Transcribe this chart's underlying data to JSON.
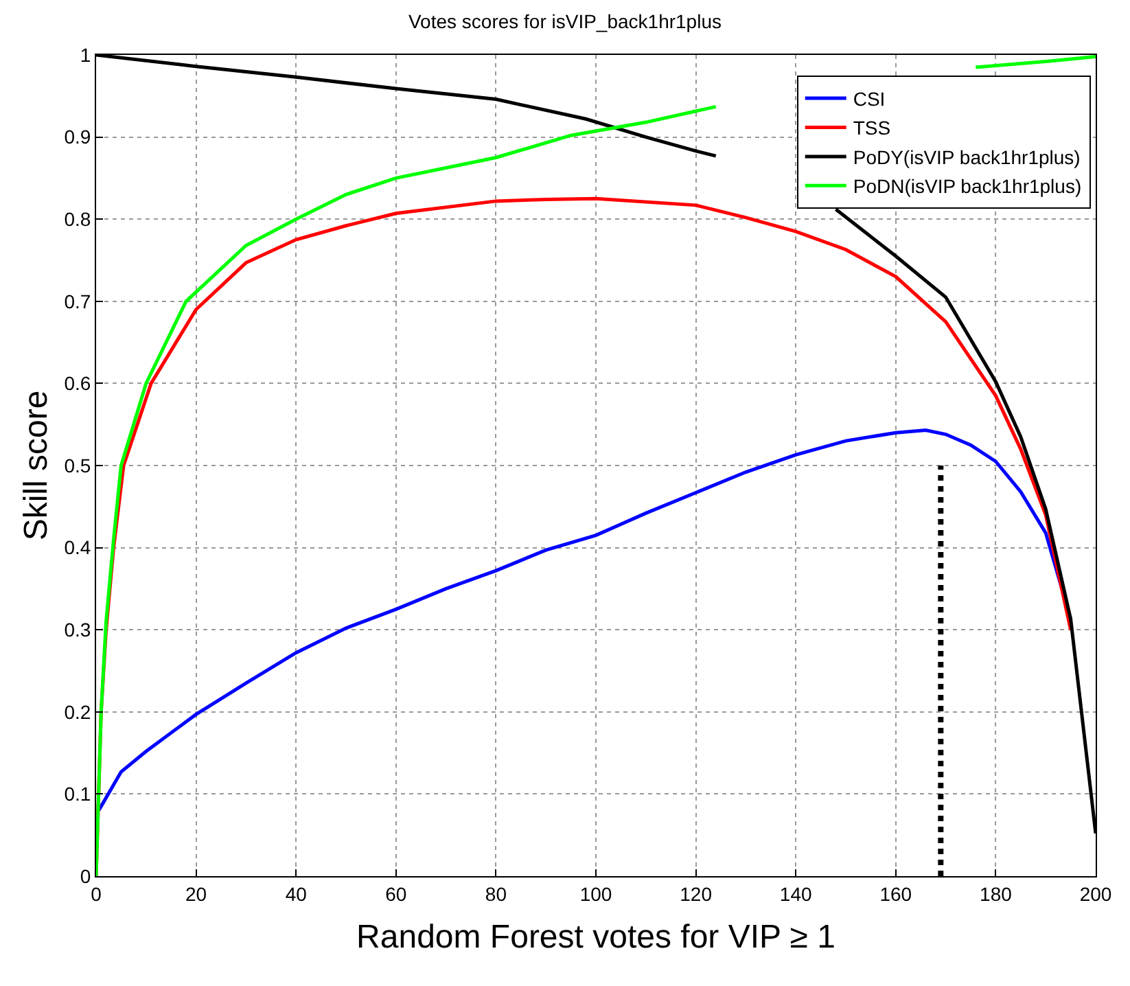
{
  "chart_data": {
    "type": "line",
    "title": "Votes scores for isVIP_back1hr1plus",
    "xlabel": "Random Forest votes for VIP ≥ 1",
    "ylabel": "Skill score",
    "xlim": [
      0,
      200
    ],
    "xticks": [
      0,
      20,
      40,
      60,
      80,
      100,
      120,
      140,
      160,
      180,
      200
    ],
    "ylim": [
      0,
      1
    ],
    "yticks": [
      0,
      0.1,
      0.2,
      0.3,
      0.4,
      0.5,
      0.6,
      0.7,
      0.8,
      0.9,
      1
    ],
    "grid": true,
    "legend": "top right",
    "line_style": "solid",
    "marker": "none",
    "series": [
      {
        "name": "CSI",
        "color": "#0000ff",
        "x": [
          0.5,
          1,
          5,
          10,
          20,
          30,
          40,
          50,
          60,
          70,
          80,
          90,
          100,
          110,
          120,
          130,
          140,
          150,
          160,
          166,
          170,
          175,
          180,
          185,
          190,
          195
        ],
        "values": [
          0.08,
          0.085,
          0.127,
          0.152,
          0.197,
          0.235,
          0.272,
          0.302,
          0.325,
          0.35,
          0.372,
          0.397,
          0.415,
          0.442,
          0.467,
          0.492,
          0.513,
          0.53,
          0.54,
          0.543,
          0.538,
          0.525,
          0.505,
          0.468,
          0.418,
          0.313
        ]
      },
      {
        "name": "TSS",
        "color": "#ff0000",
        "x": [
          0,
          1,
          2,
          3.5,
          5.5,
          11,
          20,
          30,
          40,
          50,
          60,
          80,
          90,
          100,
          120,
          130,
          140,
          150,
          160,
          170,
          180,
          185,
          190,
          195
        ],
        "values": [
          0,
          0.2,
          0.3,
          0.4,
          0.5,
          0.6,
          0.69,
          0.747,
          0.775,
          0.792,
          0.807,
          0.822,
          0.824,
          0.825,
          0.817,
          0.802,
          0.785,
          0.763,
          0.73,
          0.675,
          0.585,
          0.52,
          0.44,
          0.3
        ]
      },
      {
        "name": "PoDY(isVIP back1hr1plus)",
        "color": "#000000",
        "x": [
          0,
          20,
          40,
          60,
          80,
          98,
          110,
          120,
          124,
          136,
          148,
          160,
          170,
          180,
          185,
          190,
          195,
          200
        ],
        "values": [
          1.0,
          0.986,
          0.973,
          0.959,
          0.946,
          0.922,
          0.9,
          0.883,
          0.877,
          null,
          0.812,
          0.755,
          0.705,
          0.602,
          0.535,
          0.447,
          0.313,
          0.052
        ]
      },
      {
        "name": "PoDN(isVIP back1hr1plus)",
        "color": "#00ff00",
        "x": [
          0,
          1,
          2,
          3.5,
          5,
          10,
          18,
          30,
          40,
          50,
          60,
          80,
          95,
          110,
          124,
          150,
          176,
          190,
          200
        ],
        "values": [
          0,
          0.2,
          0.31,
          0.41,
          0.5,
          0.6,
          0.7,
          0.768,
          0.8,
          0.83,
          0.85,
          0.875,
          0.902,
          0.918,
          0.937,
          null,
          0.985,
          0.992,
          0.998
        ]
      },
      {
        "color": "#000000",
        "x": [
          169,
          169
        ],
        "values": [
          0,
          0.5
        ],
        "line_style": "dotted"
      }
    ]
  }
}
